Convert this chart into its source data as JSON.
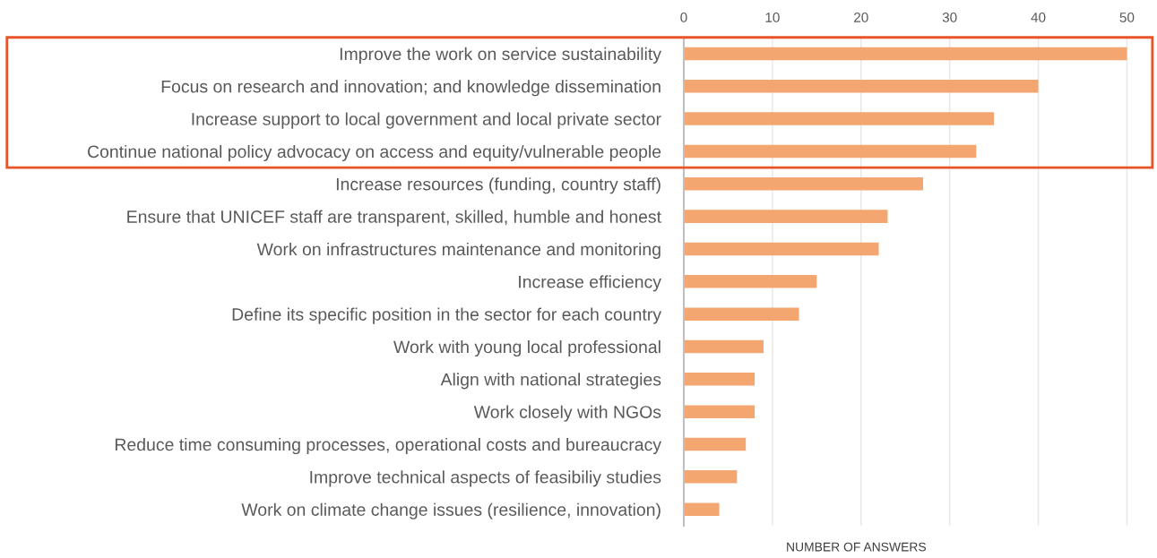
{
  "chart_data": {
    "type": "bar",
    "orientation": "horizontal",
    "xlabel": "NUMBER OF ANSWERS",
    "categories": [
      "Improve the work on service sustainability",
      "Focus on research and innovation; and knowledge dissemination",
      "Increase support to local government and local private sector",
      "Continue national policy advocacy on access and equity/vulnerable people",
      "Increase resources (funding, country staff)",
      "Ensure that UNICEF staff are transparent, skilled, humble and honest",
      "Work on infrastructures maintenance and monitoring",
      "Increase efficiency",
      "Define its specific position in the sector for each country",
      "Work with young local professional",
      "Align with national strategies",
      "Work closely with NGOs",
      "Reduce time consuming processes, operational costs and bureaucracy",
      "Improve technical aspects of feasibiliy studies",
      "Work on climate change issues (resilience, innovation)"
    ],
    "values": [
      50,
      40,
      35,
      33,
      27,
      23,
      22,
      15,
      13,
      9,
      8,
      8,
      7,
      6,
      4
    ],
    "color": "#f4a671",
    "xlim": [
      0,
      53
    ],
    "xticks": [
      0,
      10,
      20,
      30,
      40,
      50
    ],
    "grid": "x"
  }
}
